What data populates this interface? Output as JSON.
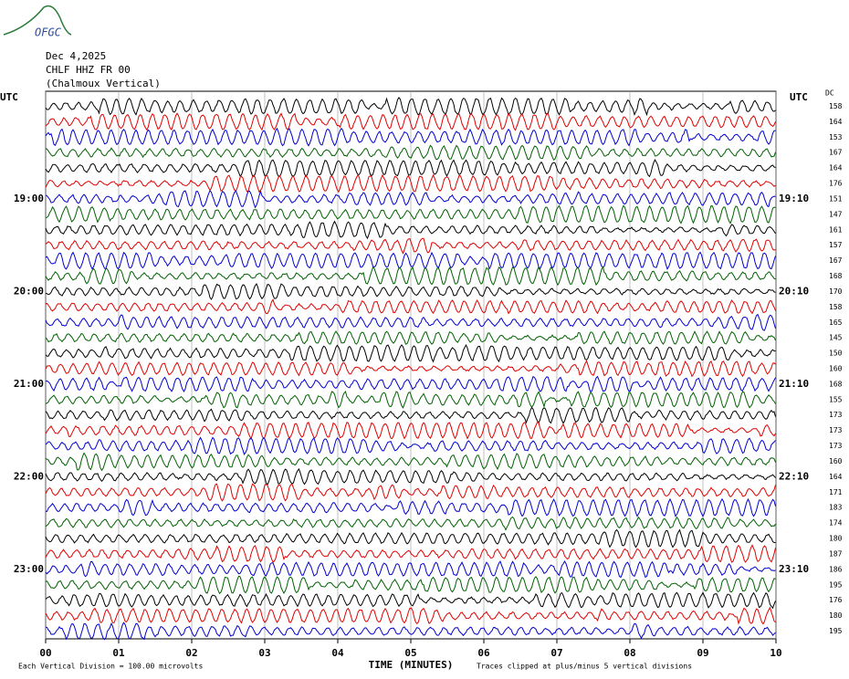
{
  "logo": "OFGC",
  "chart_data": {
    "type": "helicorder",
    "title_lines": [
      "Dec 4,2025",
      "CHLF HHZ FR 00",
      "(Chalmoux Vertical)"
    ],
    "left_axis_label": "UTC",
    "right_axis_label": "UTC",
    "right_column_label": "DC",
    "left_labels": [
      null,
      null,
      null,
      null,
      null,
      null,
      "19:00",
      null,
      null,
      null,
      null,
      null,
      "20:00",
      null,
      null,
      null,
      null,
      null,
      "21:00",
      null,
      null,
      null,
      null,
      null,
      "22:00",
      null,
      null,
      null,
      null,
      null,
      "23:00",
      null,
      null,
      null,
      null
    ],
    "right_labels": [
      null,
      null,
      null,
      null,
      null,
      null,
      "19:10",
      null,
      null,
      null,
      null,
      null,
      "20:10",
      null,
      null,
      null,
      null,
      null,
      "21:10",
      null,
      null,
      null,
      null,
      null,
      "22:10",
      null,
      null,
      null,
      null,
      null,
      "23:10",
      null,
      null,
      null,
      null
    ],
    "dc_values": [
      158,
      164,
      153,
      167,
      164,
      176,
      151,
      147,
      161,
      157,
      167,
      168,
      170,
      158,
      165,
      145,
      150,
      160,
      168,
      155,
      173,
      173,
      173,
      160,
      164,
      171,
      183,
      174,
      180,
      187,
      186,
      195,
      176,
      180,
      195
    ],
    "trace_colors": [
      "#000000",
      "#e00000",
      "#0000d0",
      "#006000"
    ],
    "xlim": [
      0,
      10
    ],
    "xticks": [
      {
        "value": 0,
        "label": "00"
      },
      {
        "value": 1,
        "label": "01"
      },
      {
        "value": 2,
        "label": "02"
      },
      {
        "value": 3,
        "label": "03"
      },
      {
        "value": 4,
        "label": "04"
      },
      {
        "value": 5,
        "label": "05"
      },
      {
        "value": 6,
        "label": "06"
      },
      {
        "value": 7,
        "label": "07"
      },
      {
        "value": 8,
        "label": "08"
      },
      {
        "value": 9,
        "label": "09"
      },
      {
        "value": 10,
        "label": "10"
      }
    ],
    "xlabel": "TIME (MINUTES)",
    "footer_left": "Each Vertical Division =  100.00 microvolts",
    "footer_right": "Traces clipped at plus/minus 5 vertical divisions",
    "grid": true
  }
}
